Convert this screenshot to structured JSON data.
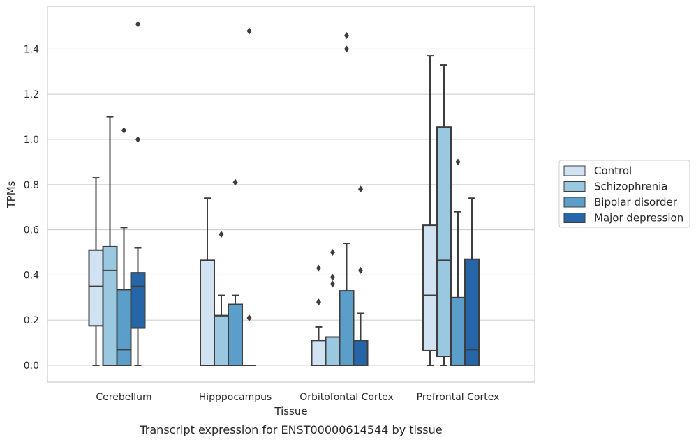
{
  "chart_data": {
    "type": "box",
    "title": "",
    "caption": "Transcript expression for ENST00000614544 by tissue",
    "xlabel": "Tissue",
    "ylabel": "TPMs",
    "ylim": [
      -0.07,
      1.58
    ],
    "yticks": [
      "0.0",
      "0.2",
      "0.4",
      "0.6",
      "0.8",
      "1.0",
      "1.2",
      "1.4"
    ],
    "grid": "horizontal",
    "legend_position": "right",
    "categories": [
      "Cerebellum",
      "Hipppocampus",
      "Orbitofontal Cortex",
      "Prefrontal Cortex"
    ],
    "series": [
      {
        "name": "Control",
        "color": "#d1e2f2",
        "boxes": [
          {
            "whisker_low": 0.0,
            "q1": 0.175,
            "median": 0.35,
            "q3": 0.51,
            "whisker_high": 0.83,
            "outliers": []
          },
          {
            "whisker_low": 0.0,
            "q1": 0.0,
            "median": 0.0,
            "q3": 0.465,
            "whisker_high": 0.74,
            "outliers": []
          },
          {
            "whisker_low": 0.0,
            "q1": 0.0,
            "median": 0.0,
            "q3": 0.11,
            "whisker_high": 0.17,
            "outliers": [
              0.28,
              0.43
            ]
          },
          {
            "whisker_low": 0.0,
            "q1": 0.065,
            "median": 0.31,
            "q3": 0.62,
            "whisker_high": 1.37,
            "outliers": []
          }
        ]
      },
      {
        "name": "Schizophrenia",
        "color": "#9ac8e0",
        "boxes": [
          {
            "whisker_low": 0.0,
            "q1": 0.0,
            "median": 0.42,
            "q3": 0.525,
            "whisker_high": 1.1,
            "outliers": []
          },
          {
            "whisker_low": 0.0,
            "q1": 0.0,
            "median": 0.22,
            "q3": 0.22,
            "whisker_high": 0.31,
            "outliers": [
              0.58
            ]
          },
          {
            "whisker_low": 0.0,
            "q1": 0.0,
            "median": 0.125,
            "q3": 0.125,
            "whisker_high": 0.125,
            "outliers": [
              0.36,
              0.39,
              0.5
            ]
          },
          {
            "whisker_low": 0.0,
            "q1": 0.04,
            "median": 0.465,
            "q3": 1.055,
            "whisker_high": 1.33,
            "outliers": []
          }
        ]
      },
      {
        "name": "Bipolar disorder",
        "color": "#5a9ec9",
        "boxes": [
          {
            "whisker_low": 0.0,
            "q1": 0.0,
            "median": 0.07,
            "q3": 0.335,
            "whisker_high": 0.61,
            "outliers": [
              1.04
            ]
          },
          {
            "whisker_low": 0.0,
            "q1": 0.0,
            "median": 0.0,
            "q3": 0.27,
            "whisker_high": 0.31,
            "outliers": [
              0.81
            ]
          },
          {
            "whisker_low": 0.0,
            "q1": 0.0,
            "median": 0.0,
            "q3": 0.33,
            "whisker_high": 0.54,
            "outliers": [
              1.4,
              1.46
            ]
          },
          {
            "whisker_low": 0.0,
            "q1": 0.0,
            "median": 0.0,
            "q3": 0.3,
            "whisker_high": 0.68,
            "outliers": [
              0.9
            ]
          }
        ]
      },
      {
        "name": "Major depression",
        "color": "#2666a8",
        "boxes": [
          {
            "whisker_low": 0.0,
            "q1": 0.165,
            "median": 0.35,
            "q3": 0.41,
            "whisker_high": 0.52,
            "outliers": [
              1.0,
              1.51
            ]
          },
          {
            "whisker_low": 0.0,
            "q1": 0.0,
            "median": 0.0,
            "q3": 0.0,
            "whisker_high": 0.0,
            "outliers": [
              0.21,
              1.48
            ]
          },
          {
            "whisker_low": 0.0,
            "q1": 0.0,
            "median": 0.0,
            "q3": 0.11,
            "whisker_high": 0.23,
            "outliers": [
              0.42,
              0.78
            ]
          },
          {
            "whisker_low": 0.0,
            "q1": 0.0,
            "median": 0.07,
            "q3": 0.47,
            "whisker_high": 0.74,
            "outliers": []
          }
        ]
      }
    ]
  }
}
